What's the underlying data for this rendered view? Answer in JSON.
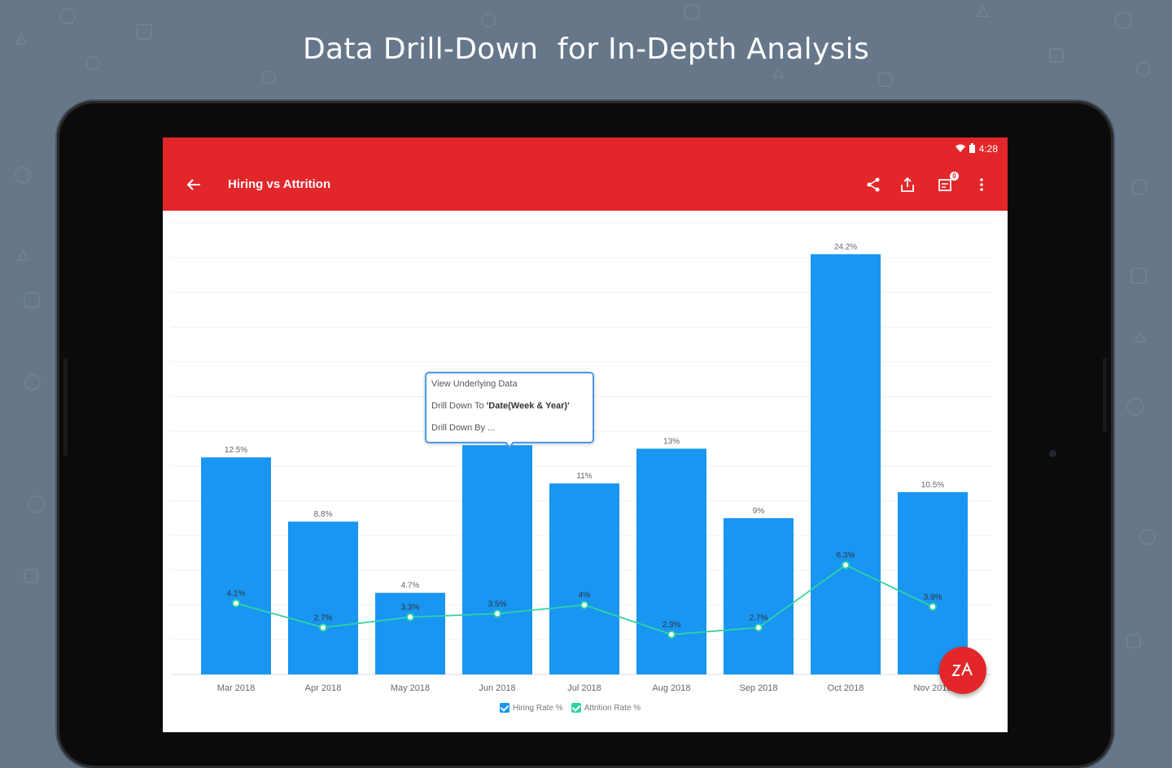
{
  "headline": "Data Drill-Down  for In-Depth Analysis",
  "status_bar": {
    "time": "4:28"
  },
  "app_bar": {
    "title": "Hiring vs Attrition",
    "notification_count": "0"
  },
  "popup_menu": {
    "items": [
      "View Underlying Data",
      "Drill Down To ",
      "Drill Down By ..."
    ],
    "drill_target": "'Date(Week & Year)'"
  },
  "colors": {
    "background": "#66778a",
    "app_bar": "#e3262a",
    "hiring_bar": "#1896f2",
    "attrition_line": "#2fd3a2"
  },
  "chart_data": {
    "type": "bar",
    "categories": [
      "Mar 2018",
      "Apr 2018",
      "May 2018",
      "Jun 2018",
      "Jul 2018",
      "Aug 2018",
      "Sep 2018",
      "Oct 2018",
      "Nov 2018"
    ],
    "series": [
      {
        "name": "Hiring Rate %",
        "type": "bar",
        "values": [
          12.5,
          8.8,
          4.7,
          13.2,
          11,
          13,
          9,
          24.2,
          10.5
        ],
        "labels": [
          "12.5%",
          "8.8%",
          "4.7%",
          "",
          "11%",
          "13%",
          "9%",
          "24.2%",
          "10.5%"
        ]
      },
      {
        "name": "Attrition Rate %",
        "type": "line",
        "values": [
          4.1,
          2.7,
          3.3,
          3.5,
          4,
          2.3,
          2.7,
          6.3,
          3.9
        ],
        "labels": [
          "4.1%",
          "2.7%",
          "3.3%",
          "3.5%",
          "4%",
          "2.3%",
          "2.7%",
          "6.3%",
          "3.9%"
        ]
      }
    ],
    "ylim": [
      0,
      26
    ],
    "grid": true,
    "legend_position": "bottom"
  }
}
